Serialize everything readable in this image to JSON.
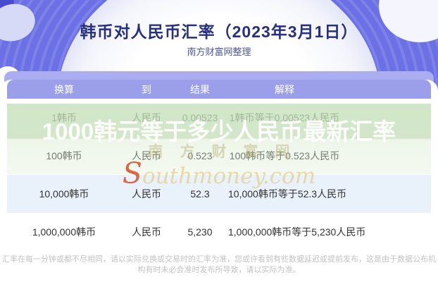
{
  "banner": {
    "title": "韩币对人民币汇率（2023年3月1日）",
    "subtitle": "南方财富网整理"
  },
  "table": {
    "headers": [
      "换算",
      "到",
      "结果",
      "解释"
    ],
    "rows": [
      {
        "convert": "1韩币",
        "to": "人民币",
        "result": "0.00523",
        "explain": "1韩币等于0.00523人民币"
      },
      {
        "convert": "100韩币",
        "to": "人民币",
        "result": "0.523",
        "explain": "100韩币等于0.523人民币"
      },
      {
        "convert": "10,000韩币",
        "to": "人民币",
        "result": "52.3",
        "explain": "10,000韩币等于52.3人民币"
      },
      {
        "convert": "1,000,000韩币",
        "to": "人民币",
        "result": "5,230",
        "explain": "1,000,000韩币等于5,230人民币"
      }
    ]
  },
  "watermark": {
    "headline": "1000韩元等于多少人民币最新汇率",
    "site_name": "南方财富网",
    "url_initial": "S",
    "url_rest": "outhmoney.com"
  },
  "disclaimer": "汇率在每一分钟或都不尽相同，请以实际兑换或交易时的汇率为准，您或许看到有些数据延迟或提前发布，这是由于数据公布机构有时未必会准时发布所导致，请以实际为准。",
  "colors": {
    "banner": "#6b70e5",
    "header_bar": "#9b9fe9",
    "row_stripe": "#e9f1fb",
    "watermark_band": "#cde0b9",
    "title_text": "#27307f"
  }
}
